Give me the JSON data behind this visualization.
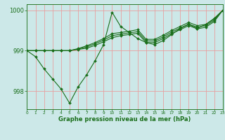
{
  "bg_color": "#cce8e8",
  "grid_color": "#e8a0a0",
  "line_color": "#1a6e1a",
  "marker_color": "#1a6e1a",
  "title": "Graphe pression niveau de la mer (hPa)",
  "xlim": [
    0,
    23
  ],
  "ylim": [
    997.55,
    1000.15
  ],
  "yticks": [
    998,
    999,
    1000
  ],
  "xticks": [
    0,
    1,
    2,
    3,
    4,
    5,
    6,
    7,
    8,
    9,
    10,
    11,
    12,
    13,
    14,
    15,
    16,
    17,
    18,
    19,
    20,
    21,
    22,
    23
  ],
  "series": [
    [
      999.0,
      998.85,
      998.55,
      998.3,
      998.05,
      997.7,
      998.1,
      998.4,
      998.75,
      999.15,
      999.95,
      999.6,
      999.45,
      999.3,
      999.2,
      999.15,
      999.25,
      999.4,
      999.55,
      999.65,
      999.55,
      999.65,
      999.8,
      1000.0
    ],
    [
      999.0,
      999.0,
      999.0,
      999.0,
      999.0,
      999.0,
      999.05,
      999.12,
      999.2,
      999.3,
      999.42,
      999.45,
      999.48,
      999.52,
      999.28,
      999.28,
      999.38,
      999.5,
      999.6,
      999.7,
      999.62,
      999.65,
      999.78,
      1000.0
    ],
    [
      999.0,
      999.0,
      999.0,
      999.0,
      999.0,
      999.0,
      999.04,
      999.09,
      999.17,
      999.26,
      999.37,
      999.41,
      999.44,
      999.47,
      999.24,
      999.24,
      999.34,
      999.46,
      999.56,
      999.66,
      999.58,
      999.62,
      999.75,
      1000.0
    ],
    [
      999.0,
      999.0,
      999.0,
      999.0,
      999.0,
      999.0,
      999.03,
      999.06,
      999.13,
      999.22,
      999.32,
      999.37,
      999.4,
      999.43,
      999.2,
      999.2,
      999.3,
      999.42,
      999.52,
      999.62,
      999.54,
      999.58,
      999.72,
      1000.0
    ]
  ]
}
